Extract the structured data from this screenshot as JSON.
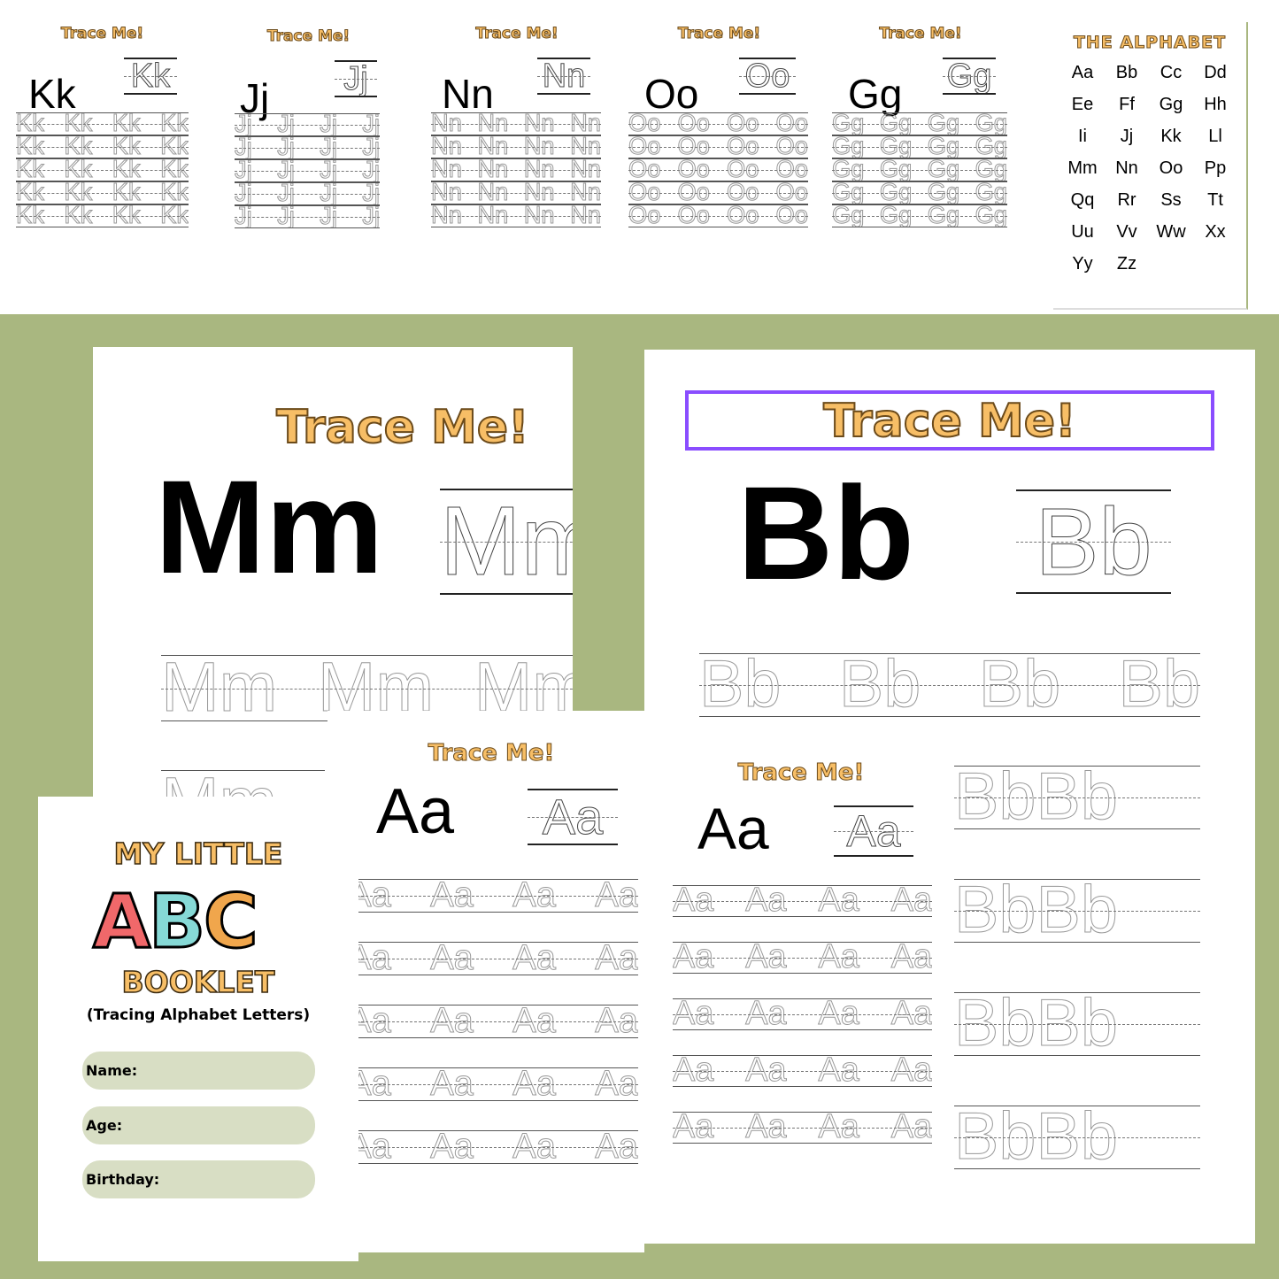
{
  "top_sheets": [
    {
      "title": "Trace Me!",
      "letter": "Kk",
      "trace": "Kk",
      "rows": [
        [
          "Kk",
          "Kk",
          "Kk",
          "Kk"
        ],
        [
          "Kk",
          "Kk",
          "Kk",
          "Kk"
        ],
        [
          "Kk",
          "Kk",
          "Kk",
          "Kk"
        ],
        [
          "Kk",
          "Kk",
          "Kk",
          "Kk"
        ],
        [
          "Kk",
          "Kk",
          "Kk",
          "Kk"
        ]
      ]
    },
    {
      "title": "Trace Me!",
      "letter": "Jj",
      "trace": "Jj",
      "rows": [
        [
          "Jj",
          "Jj",
          "Jj",
          "Jj"
        ],
        [
          "Jj",
          "Jj",
          "Jj",
          "Jj"
        ],
        [
          "Jj",
          "Jj",
          "Jj",
          "Jj"
        ],
        [
          "Jj",
          "Jj",
          "Jj",
          "Jj"
        ],
        [
          "Jj",
          "Jj",
          "Jj",
          "Jj"
        ]
      ]
    },
    {
      "title": "Trace Me!",
      "letter": "Nn",
      "trace": "Nn",
      "rows": [
        [
          "Nn",
          "Nn",
          "Nn",
          "Nn"
        ],
        [
          "Nn",
          "Nn",
          "Nn",
          "Nn"
        ],
        [
          "Nn",
          "Nn",
          "Nn",
          "Nn"
        ],
        [
          "Nn",
          "Nn",
          "Nn",
          "Nn"
        ],
        [
          "Nn",
          "Nn",
          "Nn",
          "Nn"
        ]
      ]
    },
    {
      "title": "Trace Me!",
      "letter": "Oo",
      "trace": "Oo",
      "rows": [
        [
          "Oo",
          "Oo",
          "Oo",
          "Oo"
        ],
        [
          "Oo",
          "Oo",
          "Oo",
          "Oo"
        ],
        [
          "Oo",
          "Oo",
          "Oo",
          "Oo"
        ],
        [
          "Oo",
          "Oo",
          "Oo",
          "Oo"
        ],
        [
          "Oo",
          "Oo",
          "Oo",
          "Oo"
        ]
      ]
    },
    {
      "title": "Trace Me!",
      "letter": "Gg",
      "trace": "Gg",
      "rows": [
        [
          "Gg",
          "Gg",
          "Gg",
          "Gg"
        ],
        [
          "Gg",
          "Gg",
          "Gg",
          "Gg"
        ],
        [
          "Gg",
          "Gg",
          "Gg",
          "Gg"
        ],
        [
          "Gg",
          "Gg",
          "Gg",
          "Gg"
        ],
        [
          "Gg",
          "Gg",
          "Gg",
          "Gg"
        ]
      ]
    }
  ],
  "alphabet": {
    "title": "THE ALPHABET",
    "letters": [
      "Aa",
      "Bb",
      "Cc",
      "Dd",
      "Ee",
      "Ff",
      "Gg",
      "Hh",
      "Ii",
      "Jj",
      "Kk",
      "Ll",
      "Mm",
      "Nn",
      "Oo",
      "Pp",
      "Qq",
      "Rr",
      "Ss",
      "Tt",
      "Uu",
      "Vv",
      "Ww",
      "Xx",
      "Yy",
      "Zz"
    ]
  },
  "mm_page": {
    "title": "Trace Me!",
    "letter": "Mm",
    "trace": "Mm",
    "rows": [
      [
        "Mm",
        "Mm",
        "Mm"
      ],
      [
        "Mm"
      ]
    ]
  },
  "bb_page": {
    "title": "Trace Me!",
    "letter": "Bb",
    "trace": "Bb",
    "rows": [
      [
        "Bb",
        "Bb",
        "Bb",
        "Bb"
      ],
      [
        "Bb",
        "Bb"
      ],
      [
        "Bb",
        "Bb"
      ],
      [
        "Bb",
        "Bb"
      ],
      [
        "Bb",
        "Bb"
      ]
    ],
    "accent": "#8a4dff"
  },
  "aa_page_1": {
    "title": "Trace Me!",
    "letter": "Aa",
    "trace": "Aa",
    "rows": [
      [
        "Aa",
        "Aa",
        "Aa",
        "Aa"
      ],
      [
        "Aa",
        "Aa",
        "Aa",
        "Aa"
      ],
      [
        "Aa",
        "Aa",
        "Aa",
        "Aa"
      ],
      [
        "Aa",
        "Aa",
        "Aa",
        "Aa"
      ],
      [
        "Aa",
        "Aa",
        "Aa",
        "Aa"
      ]
    ]
  },
  "aa_page_2": {
    "title": "Trace Me!",
    "letter": "Aa",
    "trace": "Aa",
    "rows": [
      [
        "Aa",
        "Aa",
        "Aa",
        "Aa"
      ],
      [
        "Aa",
        "Aa",
        "Aa",
        "Aa"
      ],
      [
        "Aa",
        "Aa",
        "Aa",
        "Aa"
      ],
      [
        "Aa",
        "Aa",
        "Aa",
        "Aa"
      ],
      [
        "Aa",
        "Aa",
        "Aa",
        "Aa"
      ]
    ]
  },
  "cover": {
    "line1": "MY LITTLE",
    "abc": [
      "A",
      "B",
      "C"
    ],
    "line2": "BOOKLET",
    "subtitle": "(Tracing Alphabet Letters)",
    "fields": [
      "Name:",
      "Age:",
      "Birthday:"
    ]
  },
  "colors": {
    "background": "#a9b780",
    "title_orange": "#f7be66",
    "field_bg": "#d8dec4",
    "abc_red": "#f0686a",
    "abc_blue": "#86d9d6",
    "abc_orange": "#f0a64c"
  }
}
